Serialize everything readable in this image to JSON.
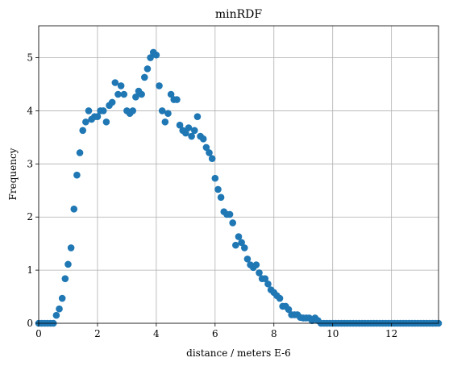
{
  "chart_data": {
    "type": "scatter",
    "title": "minRDF",
    "xlabel": "distance / meters E-6",
    "ylabel": "Frequency",
    "xlim": [
      0,
      13.6
    ],
    "ylim": [
      0,
      5.6
    ],
    "xticks": [
      0,
      2,
      4,
      6,
      8,
      10,
      12
    ],
    "yticks": [
      0,
      1,
      2,
      3,
      4,
      5
    ],
    "grid": true,
    "marker_color": "#1f77b4",
    "series": [
      {
        "x": [
          0.0,
          0.1,
          0.2,
          0.3,
          0.4,
          0.5,
          0.6,
          0.7,
          0.8,
          0.9,
          1.0,
          1.1,
          1.2,
          1.3,
          1.4,
          1.5,
          1.6,
          1.7,
          1.8,
          1.9,
          2.0,
          2.1,
          2.2,
          2.3,
          2.4,
          2.5,
          2.6,
          2.7,
          2.8,
          2.9,
          3.0,
          3.1,
          3.2,
          3.3,
          3.4,
          3.5,
          3.6,
          3.7,
          3.8,
          3.9,
          4.0,
          4.1,
          4.2,
          4.3,
          4.4,
          4.5,
          4.6,
          4.7,
          4.8,
          4.9,
          5.0,
          5.1,
          5.2,
          5.3,
          5.4,
          5.5,
          5.6,
          5.7,
          5.8,
          5.9,
          6.0,
          6.1,
          6.2,
          6.3,
          6.4,
          6.5,
          6.6,
          6.7,
          6.8,
          6.9,
          7.0,
          7.1,
          7.2,
          7.3,
          7.4,
          7.5,
          7.6,
          7.7,
          7.8,
          7.9,
          8.0,
          8.1,
          8.2,
          8.3,
          8.4,
          8.5,
          8.6,
          8.7,
          8.8,
          8.9,
          9.0,
          9.1,
          9.2,
          9.3,
          9.4,
          9.5,
          9.6,
          9.7,
          9.8,
          9.9,
          10.0,
          10.1,
          10.2,
          10.3,
          10.4,
          10.5,
          10.6,
          10.7,
          10.8,
          10.9,
          11.0,
          11.1,
          11.2,
          11.3,
          11.4,
          11.5,
          11.6,
          11.7,
          11.8,
          11.9,
          12.0,
          12.1,
          12.2,
          12.3,
          12.4,
          12.5,
          12.6,
          12.7,
          12.8,
          12.9,
          13.0,
          13.1,
          13.2,
          13.3,
          13.4,
          13.5,
          13.6
        ],
        "y": [
          0.0,
          0.0,
          0.0,
          0.0,
          0.0,
          0.0,
          0.15,
          0.27,
          0.47,
          0.84,
          1.11,
          1.42,
          2.15,
          2.79,
          3.21,
          3.63,
          3.79,
          4.0,
          3.84,
          3.89,
          3.89,
          4.0,
          4.0,
          3.79,
          4.1,
          4.16,
          4.53,
          4.31,
          4.47,
          4.31,
          4.0,
          3.95,
          4.0,
          4.26,
          4.37,
          4.31,
          4.63,
          4.79,
          5.0,
          5.1,
          5.05,
          4.47,
          4.0,
          3.79,
          3.95,
          4.31,
          4.21,
          4.21,
          3.73,
          3.63,
          3.58,
          3.68,
          3.52,
          3.63,
          3.89,
          3.52,
          3.47,
          3.31,
          3.21,
          3.1,
          2.73,
          2.52,
          2.37,
          2.1,
          2.05,
          2.05,
          1.89,
          1.47,
          1.63,
          1.52,
          1.42,
          1.21,
          1.1,
          1.05,
          1.1,
          0.95,
          0.84,
          0.84,
          0.74,
          0.63,
          0.58,
          0.52,
          0.47,
          0.32,
          0.32,
          0.26,
          0.16,
          0.16,
          0.16,
          0.11,
          0.1,
          0.1,
          0.1,
          0.05,
          0.1,
          0.05,
          0.0,
          0.0,
          0.0,
          0.0,
          0.0,
          0.0,
          0.0,
          0.0,
          0.0,
          0.0,
          0.0,
          0.0,
          0.0,
          0.0,
          0.0,
          0.0,
          0.0,
          0.0,
          0.0,
          0.0,
          0.0,
          0.0,
          0.0,
          0.0,
          0.0,
          0.0,
          0.0,
          0.0,
          0.0,
          0.0,
          0.0,
          0.0,
          0.0,
          0.0,
          0.0,
          0.0,
          0.0,
          0.0,
          0.0,
          0.0,
          0.0
        ]
      }
    ]
  }
}
